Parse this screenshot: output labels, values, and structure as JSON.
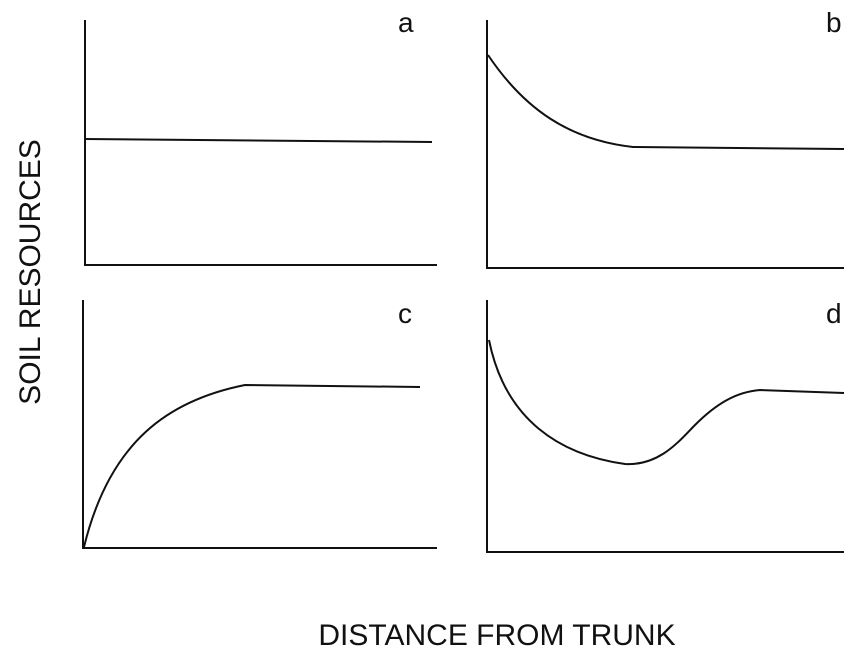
{
  "y_axis_label": "SOIL RESOURCES",
  "x_axis_label": "DISTANCE FROM TRUNK",
  "panels": [
    {
      "label": "a"
    },
    {
      "label": "b"
    },
    {
      "label": "c"
    },
    {
      "label": "d"
    }
  ]
}
